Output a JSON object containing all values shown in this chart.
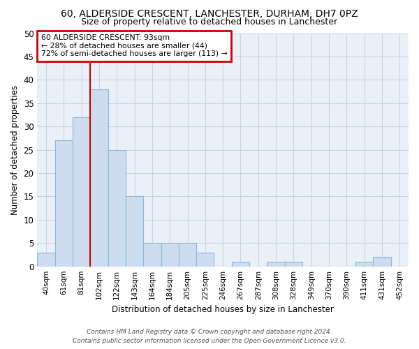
{
  "title": "60, ALDERSIDE CRESCENT, LANCHESTER, DURHAM, DH7 0PZ",
  "subtitle": "Size of property relative to detached houses in Lanchester",
  "xlabel": "Distribution of detached houses by size in Lanchester",
  "ylabel": "Number of detached properties",
  "categories": [
    "40sqm",
    "61sqm",
    "81sqm",
    "102sqm",
    "122sqm",
    "143sqm",
    "164sqm",
    "184sqm",
    "205sqm",
    "225sqm",
    "246sqm",
    "267sqm",
    "287sqm",
    "308sqm",
    "328sqm",
    "349sqm",
    "370sqm",
    "390sqm",
    "411sqm",
    "431sqm",
    "452sqm"
  ],
  "values": [
    3,
    27,
    32,
    38,
    25,
    15,
    5,
    5,
    5,
    3,
    0,
    1,
    0,
    1,
    1,
    0,
    0,
    0,
    1,
    2,
    0
  ],
  "bar_color": "#cddcee",
  "bar_edge_color": "#8fb8d8",
  "ylim": [
    0,
    50
  ],
  "yticks": [
    0,
    5,
    10,
    15,
    20,
    25,
    30,
    35,
    40,
    45,
    50
  ],
  "property_label": "60 ALDERSIDE CRESCENT: 93sqm",
  "pct_smaller": "28% of detached houses are smaller (44)",
  "pct_larger": "72% of semi-detached houses are larger (113)",
  "vline_x_index": 2.5,
  "annotation_box_color": "#ffffff",
  "annotation_box_edge": "#cc0000",
  "vline_color": "#cc0000",
  "grid_color": "#c8d4e4",
  "bg_color": "#eaf0f8",
  "footer1": "Contains HM Land Registry data © Crown copyright and database right 2024.",
  "footer2": "Contains public sector information licensed under the Open Government Licence v3.0."
}
